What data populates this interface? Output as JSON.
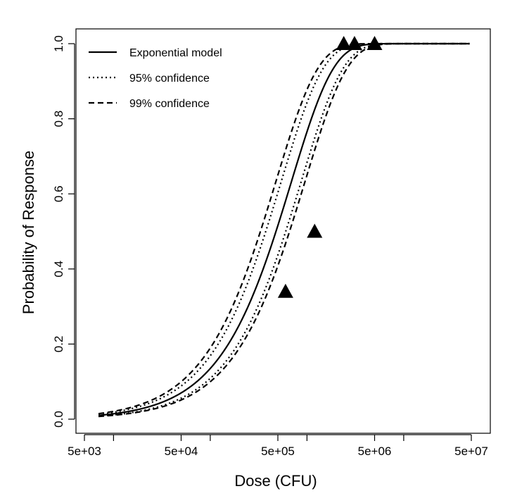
{
  "chart_data": {
    "type": "line",
    "xlabel": "Dose (CFU)",
    "ylabel": "Probability of Response",
    "x_scale": "log",
    "xlim": [
      5000,
      50000000
    ],
    "ylim": [
      0,
      1
    ],
    "grid": false,
    "legend_position": "top-left",
    "x_ticks": [
      {
        "value": 5000,
        "label": "5e+03"
      },
      {
        "value": 50000,
        "label": "5e+04"
      },
      {
        "value": 500000,
        "label": "5e+05"
      },
      {
        "value": 5000000,
        "label": "5e+06"
      },
      {
        "value": 50000000,
        "label": "5e+07"
      }
    ],
    "x_minor_ticks": [
      10000,
      100000,
      1000000,
      10000000
    ],
    "y_ticks": [
      {
        "value": 0.0,
        "label": "0.0"
      },
      {
        "value": 0.2,
        "label": "0.2"
      },
      {
        "value": 0.4,
        "label": "0.4"
      },
      {
        "value": 0.6,
        "label": "0.6"
      },
      {
        "value": 0.8,
        "label": "0.8"
      },
      {
        "value": 1.0,
        "label": "1.0"
      }
    ],
    "curve_x_range": [
      7000,
      48000000
    ],
    "series": [
      {
        "name": "Exponential model",
        "style": "solid",
        "k": 1.45e-06
      },
      {
        "name": "95% confidence",
        "style": "dotted",
        "k": [
          1.15e-06,
          1.85e-06
        ]
      },
      {
        "name": "99% confidence",
        "style": "dashed",
        "k": [
          1.05e-06,
          2.1e-06
        ]
      }
    ],
    "observed_points": [
      {
        "x": 600000,
        "y": 0.34
      },
      {
        "x": 1200000,
        "y": 0.5
      },
      {
        "x": 2400000,
        "y": 1.0
      },
      {
        "x": 3100000,
        "y": 1.0
      },
      {
        "x": 5000000,
        "y": 1.0
      }
    ]
  }
}
